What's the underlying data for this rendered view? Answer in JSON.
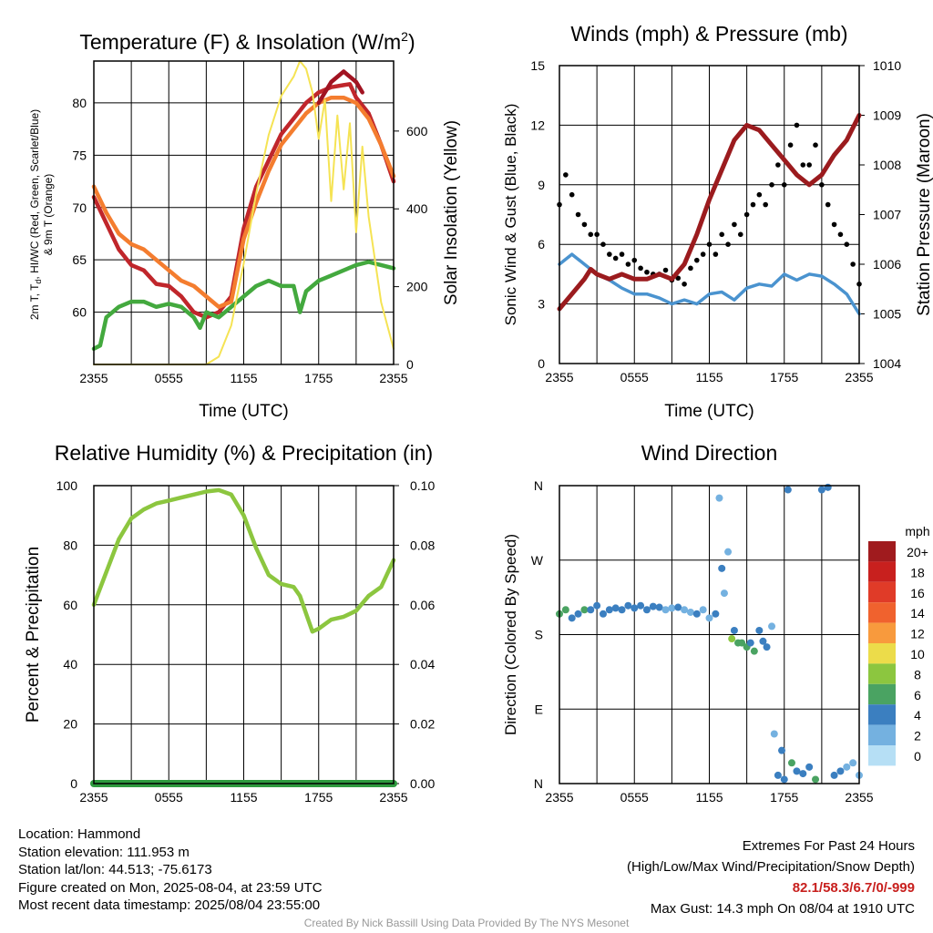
{
  "chart_data": [
    {
      "type": "line",
      "title": "Temperature (F) & Insolation (W/m2)",
      "title_main": "Temperature (F) & Insolation (W/m",
      "title_sup": "2",
      "title_end": ")",
      "xlabel": "Time (UTC)",
      "ylabel_left_lines": [
        "2m T, T",
        "d",
        ", HI/WC (Red, Green, Scarlet/Blue)",
        "& 9m T (Orange)"
      ],
      "ylabel_right": "Solar Insolation (Yellow)",
      "xticks": [
        "2355",
        "0555",
        "1155",
        "1755",
        "2355"
      ],
      "ylim": [
        55,
        84
      ],
      "yticks": [
        60,
        65,
        70,
        75,
        80
      ],
      "ylim_right": [
        0,
        780
      ],
      "yticks_right": [
        0,
        200,
        400,
        600
      ],
      "x_hours": [
        0,
        24
      ],
      "series": [
        {
          "name": "2m T",
          "color": "#c0262b",
          "x": [
            0,
            1,
            2,
            3,
            4,
            5,
            6,
            7,
            8,
            9,
            10,
            11,
            12,
            13,
            14,
            15,
            16,
            17,
            18,
            19,
            20,
            20.5,
            21,
            22,
            23,
            24
          ],
          "y": [
            71,
            68.5,
            66,
            64.5,
            64,
            62.7,
            62.5,
            61.5,
            60,
            59.5,
            60,
            61.5,
            68,
            72,
            74.5,
            77,
            78.5,
            80,
            81,
            81.5,
            81.7,
            81.8,
            80.5,
            79,
            76,
            72.5
          ]
        },
        {
          "name": "9m T",
          "color": "#f47d2f",
          "x": [
            0,
            1,
            2,
            3,
            4,
            5,
            6,
            7,
            8,
            9,
            10,
            11,
            12,
            13,
            14,
            15,
            16,
            17,
            18,
            19,
            20,
            21,
            22,
            23,
            24
          ],
          "y": [
            72,
            69.5,
            67.5,
            66.5,
            66,
            65,
            64,
            63,
            62.5,
            61.5,
            60.5,
            61,
            67,
            70.5,
            73.5,
            76,
            77.5,
            79,
            80,
            80.5,
            80.5,
            80,
            78.5,
            76,
            73
          ]
        },
        {
          "name": "Td",
          "color": "#43a93e",
          "x": [
            0,
            0.5,
            1,
            2,
            3,
            4,
            5,
            6,
            7,
            8,
            8.5,
            9,
            10,
            11,
            12,
            13,
            14,
            15,
            16,
            16.5,
            17,
            18,
            19,
            20,
            21,
            22,
            23,
            24
          ],
          "y": [
            56.5,
            56.8,
            59.5,
            60.5,
            61,
            61,
            60.5,
            60.8,
            60.5,
            59.5,
            58.5,
            60,
            59.5,
            60.5,
            61.5,
            62.5,
            63,
            62.5,
            62.5,
            60,
            62,
            63,
            63.5,
            64,
            64.5,
            64.8,
            64.5,
            64.2
          ]
        },
        {
          "name": "Insolation",
          "color": "#f5e354",
          "axis": "right",
          "x": [
            0,
            5,
            9,
            10,
            11,
            12,
            13,
            14,
            15,
            16,
            16.5,
            17,
            17.5,
            18,
            18.5,
            19,
            19.5,
            20,
            20.5,
            21,
            21.5,
            22,
            23,
            24
          ],
          "y": [
            0,
            0,
            0,
            20,
            100,
            260,
            440,
            590,
            690,
            740,
            780,
            760,
            700,
            580,
            680,
            420,
            640,
            450,
            620,
            340,
            560,
            380,
            160,
            40
          ]
        },
        {
          "name": "Heat Index",
          "color": "#a11321",
          "x": [
            18,
            19,
            20,
            20.5,
            21,
            21.5
          ],
          "y": [
            80,
            82,
            83,
            82.5,
            82,
            81
          ]
        }
      ]
    },
    {
      "type": "line",
      "title": "Winds (mph) & Pressure (mb)",
      "xlabel": "Time (UTC)",
      "ylabel_left": "Sonic Wind & Gust (Blue, Black)",
      "ylabel_right": "Station Pressure (Maroon)",
      "xticks": [
        "2355",
        "0555",
        "1155",
        "1755",
        "2355"
      ],
      "ylim": [
        0,
        15
      ],
      "yticks": [
        0,
        3,
        6,
        9,
        12,
        15
      ],
      "ylim_right": [
        1004,
        1010
      ],
      "yticks_right": [
        1004,
        1005,
        1006,
        1007,
        1008,
        1009,
        1010
      ],
      "series": [
        {
          "name": "Sonic Wind",
          "color": "#4a93cf",
          "x": [
            0,
            1,
            2,
            3,
            4,
            5,
            6,
            7,
            8,
            9,
            10,
            11,
            12,
            13,
            14,
            15,
            16,
            17,
            18,
            19,
            20,
            21,
            22,
            23,
            24
          ],
          "y": [
            5,
            5.5,
            5,
            4.5,
            4.2,
            3.8,
            3.5,
            3.5,
            3.3,
            3,
            3.2,
            3,
            3.5,
            3.6,
            3.2,
            3.8,
            4,
            3.9,
            4.5,
            4.2,
            4.5,
            4.4,
            4,
            3.5,
            2.5
          ]
        },
        {
          "name": "Gust",
          "color": "#000000",
          "x": [
            0,
            0.5,
            1,
            1.5,
            2,
            2.5,
            3,
            3.5,
            4,
            4.5,
            5,
            5.5,
            6,
            6.5,
            7,
            7.5,
            8,
            8.5,
            9,
            9.5,
            10,
            10.5,
            11,
            11.5,
            12,
            12.5,
            13,
            13.5,
            14,
            14.5,
            15,
            15.5,
            16,
            16.5,
            17,
            17.5,
            18,
            18.5,
            19,
            19.5,
            20,
            20.5,
            21,
            21.5,
            22,
            22.5,
            23,
            23.5,
            24
          ],
          "y": [
            8,
            9.5,
            8.5,
            7.5,
            7,
            6.5,
            6.5,
            6,
            5.5,
            5.3,
            5.5,
            5,
            5.2,
            4.8,
            4.6,
            4.5,
            4.5,
            4.7,
            4.2,
            4.3,
            4,
            4.8,
            5.2,
            5.5,
            6,
            5.5,
            6.5,
            6,
            7,
            6.5,
            7.5,
            8,
            8.5,
            8,
            9,
            10,
            9,
            11,
            12,
            10,
            10,
            11,
            9,
            8,
            7,
            6.5,
            6,
            5,
            4
          ]
        },
        {
          "name": "Station Pressure",
          "color": "#9b1b1e",
          "axis": "right",
          "x": [
            0,
            1,
            2,
            2.5,
            3,
            4,
            5,
            6,
            7,
            8,
            9,
            10,
            11,
            12,
            13,
            14,
            15,
            16,
            17,
            18,
            19,
            20,
            21,
            22,
            23,
            24
          ],
          "y": [
            1005.1,
            1005.4,
            1005.7,
            1005.9,
            1005.8,
            1005.7,
            1005.8,
            1005.7,
            1005.7,
            1005.8,
            1005.7,
            1006.0,
            1006.6,
            1007.3,
            1007.9,
            1008.5,
            1008.8,
            1008.7,
            1008.4,
            1008.1,
            1007.8,
            1007.6,
            1007.8,
            1008.2,
            1008.5,
            1009.0
          ]
        }
      ]
    },
    {
      "type": "line",
      "title": "Relative Humidity (%) & Precipitation (in)",
      "xlabel": "",
      "ylabel_left": "Percent & Precipitation",
      "xticks": [
        "2355",
        "0555",
        "1155",
        "1755",
        "2355"
      ],
      "ylim": [
        0,
        100
      ],
      "yticks": [
        0,
        20,
        40,
        60,
        80,
        100
      ],
      "ylim_right": [
        0,
        0.1
      ],
      "yticks_right": [
        "0.00",
        "0.02",
        "0.04",
        "0.06",
        "0.08",
        "0.10"
      ],
      "series": [
        {
          "name": "Relative Humidity",
          "color": "#8cc63f",
          "x": [
            0,
            1,
            2,
            3,
            4,
            5,
            6,
            7,
            8,
            9,
            10,
            11,
            12,
            13,
            14,
            15,
            16,
            16.5,
            17,
            17.5,
            18,
            19,
            20,
            21,
            22,
            23,
            24
          ],
          "y": [
            60,
            71,
            82,
            89,
            92,
            94,
            95,
            96,
            97,
            98,
            98.5,
            97,
            90,
            79,
            70,
            67,
            66,
            63,
            57,
            51,
            52,
            55,
            56,
            58,
            63,
            66,
            75
          ]
        },
        {
          "name": "Precipitation",
          "color": "#2e9a3e",
          "axis": "right",
          "x": [
            0,
            24
          ],
          "y": [
            0,
            0
          ]
        }
      ]
    },
    {
      "type": "scatter",
      "title": "Wind Direction",
      "ylabel_left": "Direction (Colored By Speed)",
      "xticks": [
        "2355",
        "0555",
        "1155",
        "1755",
        "2355"
      ],
      "yticks": [
        "N",
        "E",
        "S",
        "W",
        "N"
      ],
      "ylim": [
        0,
        360
      ],
      "colorbar_unit": "mph",
      "colorbar_labels": [
        "20+",
        "18",
        "16",
        "14",
        "12",
        "10",
        "8",
        "6",
        "4",
        "2",
        "0"
      ],
      "colorbar_colors": [
        "#a01b1e",
        "#c8201e",
        "#e03b28",
        "#f0622e",
        "#f89a3d",
        "#ecdc4a",
        "#8cc63f",
        "#4aa362",
        "#3b7fc0",
        "#74b1e0",
        "#b6dff5"
      ],
      "x": [
        0,
        0.5,
        1,
        1.5,
        2,
        2.5,
        3,
        3.5,
        4,
        4.5,
        5,
        5.5,
        6,
        6.5,
        7,
        7.5,
        8,
        8.5,
        9,
        9.5,
        10,
        10.5,
        11,
        11.5,
        12,
        12.5,
        12.8,
        13,
        13.2,
        13.5,
        13.8,
        14,
        14.3,
        14.6,
        15,
        15.3,
        15.6,
        16,
        16.3,
        16.6,
        17,
        17.2,
        17.5,
        17.8,
        18,
        18.3,
        18.6,
        19,
        19.5,
        20,
        20.5,
        21,
        21.5,
        22,
        22.5,
        23,
        23.5,
        24
      ],
      "y": [
        205,
        210,
        200,
        205,
        210,
        210,
        215,
        205,
        210,
        212,
        210,
        215,
        212,
        215,
        210,
        214,
        213,
        210,
        212,
        213,
        210,
        207,
        205,
        210,
        200,
        205,
        345,
        260,
        230,
        280,
        175,
        185,
        170,
        170,
        165,
        170,
        160,
        185,
        172,
        165,
        190,
        60,
        10,
        40,
        5,
        355,
        25,
        15,
        12,
        20,
        5,
        355,
        358,
        10,
        15,
        20,
        25,
        10
      ],
      "speeds": [
        5,
        6,
        4,
        4,
        5,
        4,
        4,
        4,
        4,
        4,
        3,
        4,
        4,
        4,
        3,
        3,
        3,
        2,
        2,
        3,
        2,
        2,
        3,
        2,
        2,
        3,
        1,
        3,
        2,
        2,
        7,
        3,
        5,
        6,
        5,
        3,
        6,
        4,
        4,
        3,
        2,
        2,
        3,
        3,
        4,
        3,
        6,
        4,
        3,
        3,
        6,
        4,
        3,
        4,
        3,
        2,
        2,
        2
      ]
    }
  ],
  "info": {
    "location": "Location: Hammond",
    "elevation": "Station elevation: 111.953 m",
    "latlon": "Station lat/lon: 44.513; -75.6173",
    "created": "Figure created on Mon, 2025-08-04, at 23:59 UTC",
    "recent": "Most recent data timestamp: 2025/08/04 23:55:00"
  },
  "extremes": {
    "title": "Extremes For Past 24 Hours",
    "subtitle": "(High/Low/Max Wind/Precipitation/Snow Depth)",
    "values": "82.1/58.3/6.7/0/-999",
    "values_color": "#c8201e",
    "gust": "Max Gust: 14.3 mph On 08/04 at 1910 UTC"
  },
  "credit": "Created By Nick Bassill Using Data Provided By The NYS Mesonet"
}
